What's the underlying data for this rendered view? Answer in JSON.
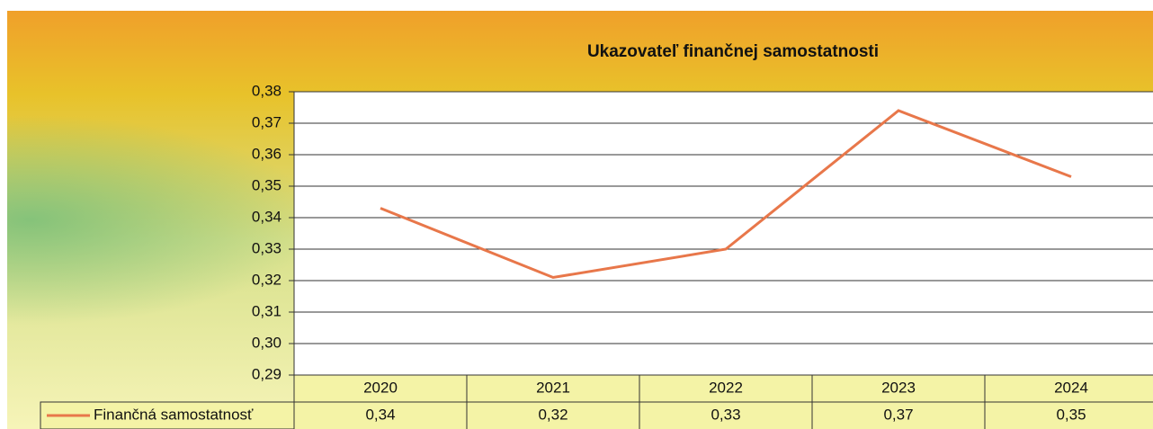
{
  "chart_data": {
    "type": "line",
    "title": "Ukazovateľ finančnej samostatnosti",
    "categories": [
      "2020",
      "2021",
      "2022",
      "2023",
      "2024"
    ],
    "series": [
      {
        "name": "Finančná samostatnosť",
        "color": "#e8774a",
        "values": [
          0.343,
          0.321,
          0.33,
          0.374,
          0.353
        ],
        "value_labels": [
          "0,34",
          "0,32",
          "0,33",
          "0,37",
          "0,35"
        ]
      }
    ],
    "ylim": [
      0.29,
      0.38
    ],
    "yticks": [
      {
        "value": 0.29,
        "label": "0,29"
      },
      {
        "value": 0.3,
        "label": "0,30"
      },
      {
        "value": 0.31,
        "label": "0,31"
      },
      {
        "value": 0.32,
        "label": "0,32"
      },
      {
        "value": 0.33,
        "label": "0,33"
      },
      {
        "value": 0.34,
        "label": "0,34"
      },
      {
        "value": 0.35,
        "label": "0,35"
      },
      {
        "value": 0.36,
        "label": "0,36"
      },
      {
        "value": 0.37,
        "label": "0,37"
      },
      {
        "value": 0.38,
        "label": "0,38"
      }
    ],
    "grid": true
  }
}
